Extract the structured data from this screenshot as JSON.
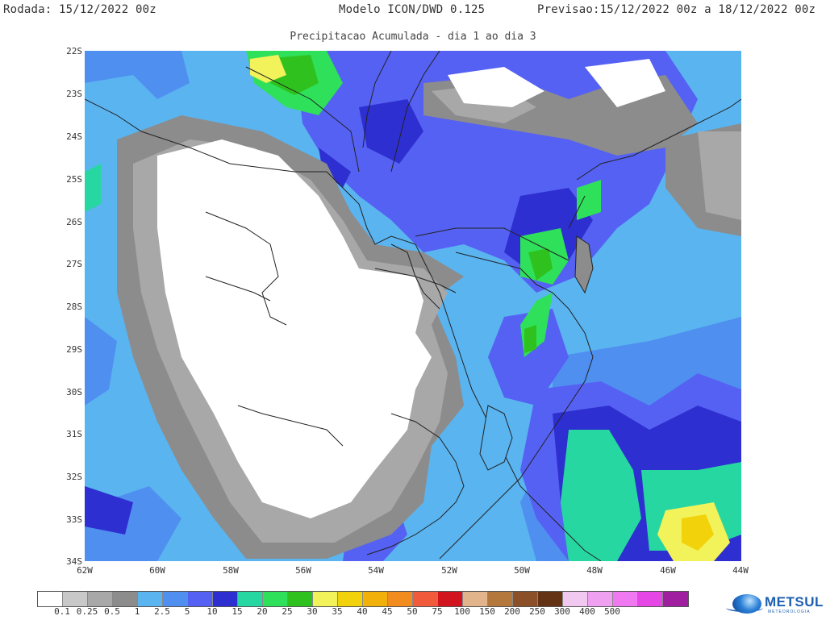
{
  "header": {
    "run": "Rodada: 15/12/2022 00z",
    "model": "Modelo ICON/DWD 0.125",
    "forecast": "Previsao:15/12/2022 00z a 18/12/2022 00z",
    "subtitle": "Precipitacao Acumulada - dia 1 ao dia 3"
  },
  "axes": {
    "lat_labels": [
      "22S",
      "23S",
      "24S",
      "25S",
      "26S",
      "27S",
      "28S",
      "29S",
      "30S",
      "31S",
      "32S",
      "33S",
      "34S"
    ],
    "lon_labels": [
      "62W",
      "60W",
      "58W",
      "56W",
      "54W",
      "52W",
      "50W",
      "48W",
      "46W",
      "44W"
    ]
  },
  "legend": {
    "colors": [
      "#ffffff",
      "#c8c8c8",
      "#a8a8a8",
      "#8c8c8c",
      "#5ab4f0",
      "#4f8ff0",
      "#5561f2",
      "#2e2fd0",
      "#27d7a1",
      "#2fe05a",
      "#2fc21e",
      "#f2f25a",
      "#f2d20a",
      "#f2b10a",
      "#f28c1e",
      "#f25a3c",
      "#d2141e",
      "#e1b48c",
      "#b4783c",
      "#8c5028",
      "#643214",
      "#f0c8f0",
      "#f0a0f0",
      "#f078f0",
      "#e646e6",
      "#a01ea0"
    ],
    "labels": [
      "0.1",
      "0.25",
      "0.5",
      "1",
      "2.5",
      "5",
      "10",
      "15",
      "20",
      "25",
      "30",
      "35",
      "40",
      "45",
      "50",
      "75",
      "100",
      "150",
      "200",
      "250",
      "300",
      "400",
      "500"
    ]
  },
  "logo": {
    "name": "METSUL",
    "sub": "METEOROLOGIA"
  }
}
